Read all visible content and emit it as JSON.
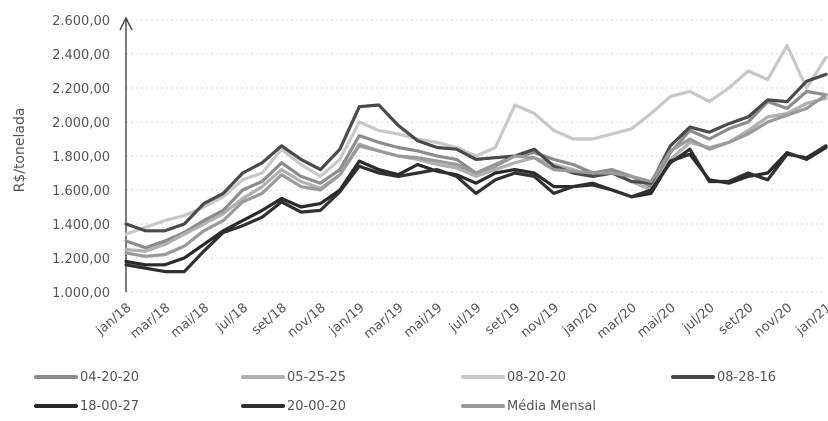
{
  "chart_data": {
    "type": "line",
    "title": "",
    "xlabel": "",
    "ylabel": "R$/tonelada",
    "ylim": [
      1000,
      2600
    ],
    "yticks": [
      "1.000,00",
      "1.200,00",
      "1.400,00",
      "1.600,00",
      "1.800,00",
      "2.000,00",
      "2.200,00",
      "2.400,00",
      "2.600,00"
    ],
    "ytick_values": [
      1000,
      1200,
      1400,
      1600,
      1800,
      2000,
      2200,
      2400,
      2600
    ],
    "x": [
      "jan/18",
      "fev/18",
      "mar/18",
      "abr/18",
      "mai/18",
      "jun/18",
      "jul/18",
      "ago/18",
      "set/18",
      "out/18",
      "nov/18",
      "dez/18",
      "jan/19",
      "fev/19",
      "mar/19",
      "abr/19",
      "mai/19",
      "jun/19",
      "jul/19",
      "ago/19",
      "set/19",
      "out/19",
      "nov/19",
      "dez/19",
      "jan/20",
      "fev/20",
      "mar/20",
      "abr/20",
      "mai/20",
      "jun/20",
      "jul/20",
      "ago/20",
      "set/20",
      "out/20",
      "nov/20",
      "dez/20",
      "jan/21"
    ],
    "xtick_labels": [
      "jan/18",
      "mar/18",
      "mai/18",
      "jul/18",
      "set/18",
      "nov/18",
      "jan/19",
      "mar/19",
      "mai/19",
      "jul/19",
      "set/19",
      "nov/19",
      "jan/20",
      "mar/20",
      "mai/20",
      "jul/20",
      "set/20",
      "nov/20",
      "jan/21"
    ],
    "grid": true,
    "legend_position": "bottom",
    "series": [
      {
        "name": "04-20-20",
        "color": "#8c8c8c",
        "values": [
          1300,
          1260,
          1300,
          1350,
          1420,
          1480,
          1600,
          1650,
          1760,
          1680,
          1640,
          1720,
          1920,
          1880,
          1850,
          1830,
          1800,
          1780,
          1700,
          1750,
          1800,
          1820,
          1780,
          1750,
          1700,
          1720,
          1680,
          1620,
          1820,
          1950,
          1900,
          1960,
          2000,
          2120,
          2080,
          2180,
          2160
        ]
      },
      {
        "name": "05-25-25",
        "color": "#b0b0b0",
        "values": [
          1250,
          1240,
          1280,
          1340,
          1400,
          1460,
          1550,
          1620,
          1720,
          1650,
          1610,
          1690,
          1870,
          1830,
          1800,
          1780,
          1750,
          1730,
          1680,
          1720,
          1760,
          1790,
          1750,
          1720,
          1680,
          1700,
          1650,
          1600,
          1780,
          1880,
          1850,
          1880,
          1950,
          2030,
          2050,
          2110,
          2140
        ]
      },
      {
        "name": "08-20-20",
        "color": "#c8c8c8",
        "values": [
          1340,
          1380,
          1420,
          1450,
          1500,
          1560,
          1660,
          1700,
          1840,
          1750,
          1680,
          1780,
          2000,
          1950,
          1930,
          1900,
          1880,
          1850,
          1800,
          1850,
          2100,
          2050,
          1950,
          1900,
          1900,
          1930,
          1960,
          2050,
          2150,
          2180,
          2120,
          2200,
          2300,
          2250,
          2450,
          2200,
          2380
        ]
      },
      {
        "name": "08-28-16",
        "color": "#4a4a4a",
        "values": [
          1400,
          1360,
          1360,
          1400,
          1520,
          1580,
          1700,
          1760,
          1860,
          1780,
          1720,
          1840,
          2090,
          2100,
          1980,
          1890,
          1850,
          1840,
          1780,
          1790,
          1800,
          1840,
          1740,
          1700,
          1680,
          1700,
          1650,
          1640,
          1860,
          1970,
          1940,
          1990,
          2030,
          2130,
          2120,
          2240,
          2280
        ]
      },
      {
        "name": "18-00-27",
        "color": "#2a2a2a",
        "values": [
          1180,
          1160,
          1160,
          1200,
          1280,
          1360,
          1420,
          1480,
          1550,
          1500,
          1520,
          1600,
          1770,
          1720,
          1690,
          1750,
          1710,
          1690,
          1640,
          1700,
          1720,
          1700,
          1620,
          1620,
          1640,
          1600,
          1560,
          1580,
          1770,
          1810,
          1660,
          1640,
          1680,
          1700,
          1820,
          1780,
          1850
        ]
      },
      {
        "name": "20-00-20",
        "color": "#303030",
        "values": [
          1160,
          1140,
          1120,
          1120,
          1240,
          1350,
          1390,
          1440,
          1530,
          1470,
          1480,
          1590,
          1740,
          1700,
          1680,
          1700,
          1720,
          1680,
          1580,
          1660,
          1700,
          1680,
          1580,
          1620,
          1630,
          1600,
          1560,
          1600,
          1760,
          1840,
          1650,
          1650,
          1700,
          1660,
          1810,
          1790,
          1860
        ]
      },
      {
        "name": "Média Mensal",
        "color": "#9a9a9a",
        "values": [
          1230,
          1210,
          1220,
          1270,
          1360,
          1420,
          1530,
          1580,
          1690,
          1620,
          1600,
          1690,
          1860,
          1830,
          1800,
          1790,
          1770,
          1750,
          1700,
          1740,
          1800,
          1790,
          1720,
          1710,
          1700,
          1700,
          1680,
          1650,
          1830,
          1900,
          1840,
          1880,
          1930,
          2000,
          2040,
          2080,
          2160
        ]
      }
    ]
  }
}
